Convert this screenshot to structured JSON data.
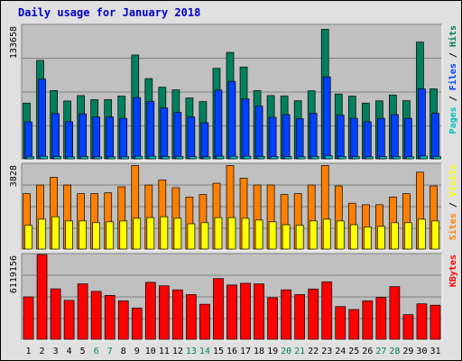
{
  "chart_data": {
    "type": "bar",
    "title": "Daily usage for January 2018",
    "categories": [
      "1",
      "2",
      "3",
      "4",
      "5",
      "6",
      "7",
      "8",
      "9",
      "10",
      "11",
      "12",
      "13",
      "14",
      "15",
      "16",
      "17",
      "18",
      "19",
      "20",
      "21",
      "22",
      "23",
      "24",
      "25",
      "26",
      "27",
      "28",
      "29",
      "30",
      "31"
    ],
    "weekend_days": [
      "6",
      "7",
      "13",
      "14",
      "20",
      "21",
      "27",
      "28"
    ],
    "grid": true,
    "legend": "right-vertical",
    "panels": [
      {
        "id": "top",
        "y_max_label": "133658",
        "y_max": 133658,
        "legend_text": [
          {
            "text": "Pages",
            "color": "#00c0c0"
          },
          {
            "text": " / ",
            "color": "#000000"
          },
          {
            "text": "Files",
            "color": "#0040ff"
          },
          {
            "text": " / ",
            "color": "#000000"
          },
          {
            "text": "Hits",
            "color": "#00805c"
          }
        ],
        "series": [
          {
            "name": "Hits",
            "color": "#00805c",
            "values": [
              55800,
              98500,
              68300,
              57900,
              63300,
              59300,
              59300,
              62800,
              103900,
              80300,
              71700,
              69000,
              60900,
              57300,
              90600,
              106500,
              91900,
              68300,
              63300,
              63000,
              58100,
              68000,
              129600,
              64900,
              62700,
              55800,
              58000,
              63900,
              58200,
              116800,
              70000
            ]
          },
          {
            "name": "Files",
            "color": "#0040ff",
            "values": [
              37000,
              79800,
              45300,
              37200,
              45000,
              41900,
              41900,
              40500,
              61300,
              57500,
              51000,
              46500,
              41900,
              36100,
              68800,
              77500,
              60000,
              52700,
              41600,
              44300,
              40200,
              45600,
              82000,
              43700,
              40600,
              37200,
              40500,
              44300,
              40500,
              70000,
              45500
            ]
          },
          {
            "name": "Pages",
            "color": "#00c0c0",
            "values": [
              2000,
              2600,
              2400,
              2000,
              2400,
              2000,
              2000,
              2200,
              2600,
              2600,
              2400,
              2400,
              2200,
              2000,
              2600,
              2600,
              2600,
              2400,
              2200,
              2200,
              2200,
              2400,
              3000,
              2400,
              2200,
              2000,
              2200,
              2200,
              2000,
              2800,
              2400
            ]
          }
        ]
      },
      {
        "id": "middle",
        "y_max_label": "3828",
        "y_max": 3828,
        "legend_text": [
          {
            "text": "Sites",
            "color": "#ff8000"
          },
          {
            "text": " / ",
            "color": "#000000"
          },
          {
            "text": "Visits",
            "color": "#ffff00"
          }
        ],
        "series": [
          {
            "name": "Visits",
            "color": "#ff8000",
            "values": [
              2500,
              2890,
              3240,
              2890,
              2500,
              2500,
              2540,
              2810,
              3770,
              2890,
              3120,
              2770,
              2350,
              2460,
              2970,
              3770,
              3200,
              2890,
              2890,
              2460,
              2500,
              2890,
              3770,
              2850,
              2070,
              2000,
              2000,
              2350,
              2500,
              3470,
              2850
            ]
          },
          {
            "name": "Sites",
            "color": "#ffff00",
            "values": [
              1080,
              1350,
              1460,
              1270,
              1270,
              1190,
              1230,
              1270,
              1390,
              1420,
              1460,
              1390,
              1140,
              1190,
              1420,
              1420,
              1390,
              1310,
              1230,
              1100,
              1080,
              1270,
              1350,
              1270,
              1100,
              1000,
              1030,
              1190,
              1190,
              1350,
              1270
            ]
          }
        ]
      },
      {
        "id": "bottom",
        "y_max_label": "6119156",
        "y_max": 6119156,
        "legend_text": [
          {
            "text": "KBytes",
            "color": "#ff0000"
          }
        ],
        "series": [
          {
            "name": "KBytes",
            "color": "#ff0000",
            "values": [
              3060000,
              6119156,
              3640000,
              2810000,
              4000000,
              3460000,
              3170000,
              2780000,
              2260000,
              4110000,
              3860000,
              3570000,
              3230000,
              2530000,
              4380000,
              3920000,
              4040000,
              4000000,
              3000000,
              3570000,
              3230000,
              3630000,
              4150000,
              2360000,
              2150000,
              2780000,
              3020000,
              3800000,
              1780000,
              2560000,
              2460000
            ]
          }
        ]
      }
    ]
  }
}
